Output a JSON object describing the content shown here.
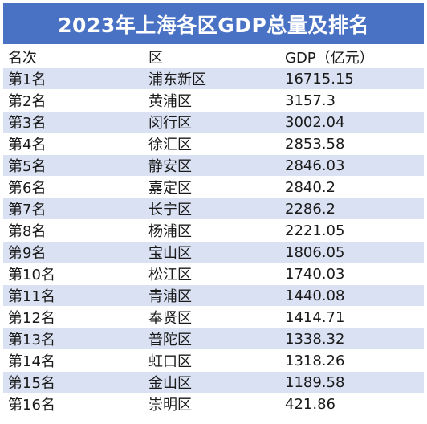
{
  "title": "2023年上海各区GDP总量及排名",
  "headers": [
    "名次",
    "区",
    "GDP（亿元）"
  ],
  "rows": [
    [
      "第1名",
      "浦东新区",
      "16715.15"
    ],
    [
      "第2名",
      "黄浦区",
      "3157.3"
    ],
    [
      "第3名",
      "闵行区",
      "3002.04"
    ],
    [
      "第4名",
      "徐汇区",
      "2853.58"
    ],
    [
      "第5名",
      "静安区",
      "2846.03"
    ],
    [
      "第6名",
      "嘉定区",
      "2840.2"
    ],
    [
      "第7名",
      "长宁区",
      "2286.2"
    ],
    [
      "第8名",
      "杨浦区",
      "2221.05"
    ],
    [
      "第9名",
      "宝山区",
      "1806.05"
    ],
    [
      "第10名",
      "松江区",
      "1740.03"
    ],
    [
      "第11名",
      "青浦区",
      "1440.08"
    ],
    [
      "第12名",
      "奉贤区",
      "1414.71"
    ],
    [
      "第13名",
      "普陀区",
      "1338.32"
    ],
    [
      "第14名",
      "虹口区",
      "1318.26"
    ],
    [
      "第15名",
      "金山区",
      "1189.58"
    ],
    [
      "第16名",
      "崇明区",
      "421.86"
    ]
  ],
  "colors": {
    "title_bg": "#4a72c4",
    "stripe": "#d9e1f2"
  }
}
